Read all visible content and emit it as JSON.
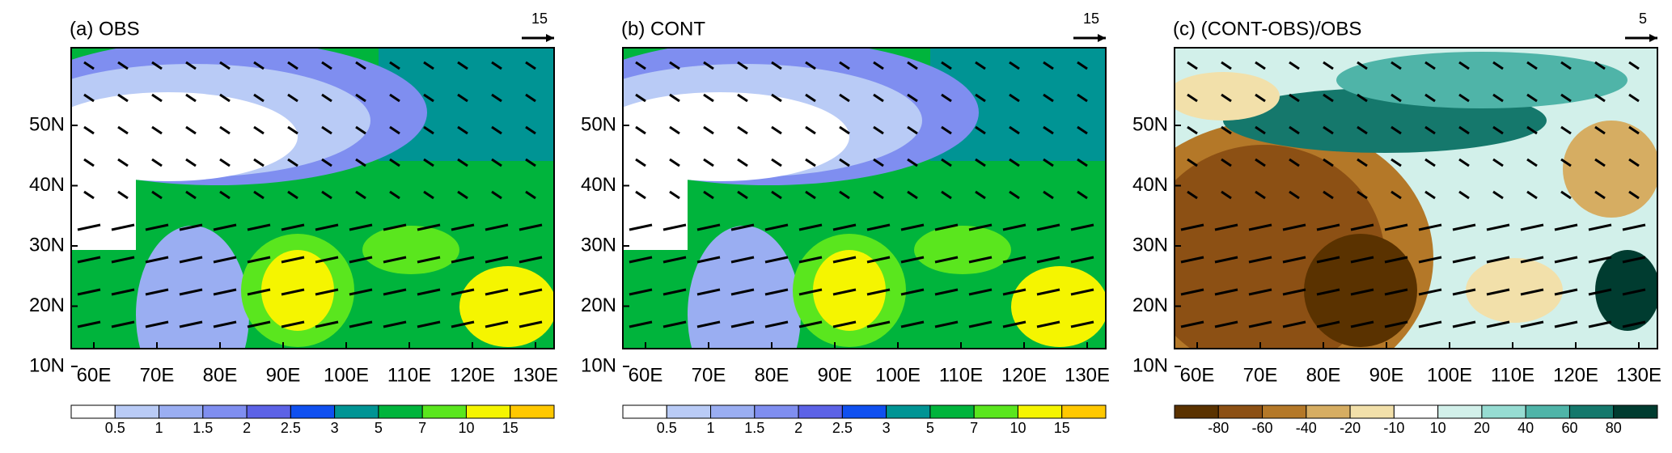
{
  "lat_labels": [
    "10N",
    "20N",
    "30N",
    "40N",
    "50N"
  ],
  "lon_labels": [
    "60E",
    "70E",
    "80E",
    "90E",
    "100E",
    "110E",
    "120E",
    "130E"
  ],
  "panels": [
    {
      "title": "(a) OBS",
      "ref_vector": "15",
      "colorbar": {
        "labels": [
          "0.5",
          "1",
          "1.5",
          "2",
          "2.5",
          "3",
          "5",
          "7",
          "10",
          "15"
        ],
        "colors": [
          "#ffffff",
          "#b9cbf6",
          "#9aaef2",
          "#7f8ef0",
          "#5c62e6",
          "#1050f0",
          "#009494",
          "#00b43c",
          "#5ae61e",
          "#f5f500",
          "#ffc800"
        ]
      }
    },
    {
      "title": "(b) CONT",
      "ref_vector": "15",
      "colorbar": {
        "labels": [
          "0.5",
          "1",
          "1.5",
          "2",
          "2.5",
          "3",
          "5",
          "7",
          "10",
          "15"
        ],
        "colors": [
          "#ffffff",
          "#b9cbf6",
          "#9aaef2",
          "#7f8ef0",
          "#5c62e6",
          "#1050f0",
          "#009494",
          "#00b43c",
          "#5ae61e",
          "#f5f500",
          "#ffc800"
        ]
      }
    },
    {
      "title": "(c) (CONT-OBS)/OBS",
      "ref_vector": "5",
      "colorbar": {
        "labels": [
          "-80",
          "-60",
          "-40",
          "-20",
          "-10",
          "10",
          "20",
          "40",
          "60",
          "80"
        ],
        "colors": [
          "#5a3200",
          "#8c5014",
          "#b47828",
          "#d6ad62",
          "#f2e0aa",
          "#ffffff",
          "#d2f0ea",
          "#96dcd2",
          "#4fb4a8",
          "#15786c",
          "#003c30"
        ]
      }
    }
  ]
}
